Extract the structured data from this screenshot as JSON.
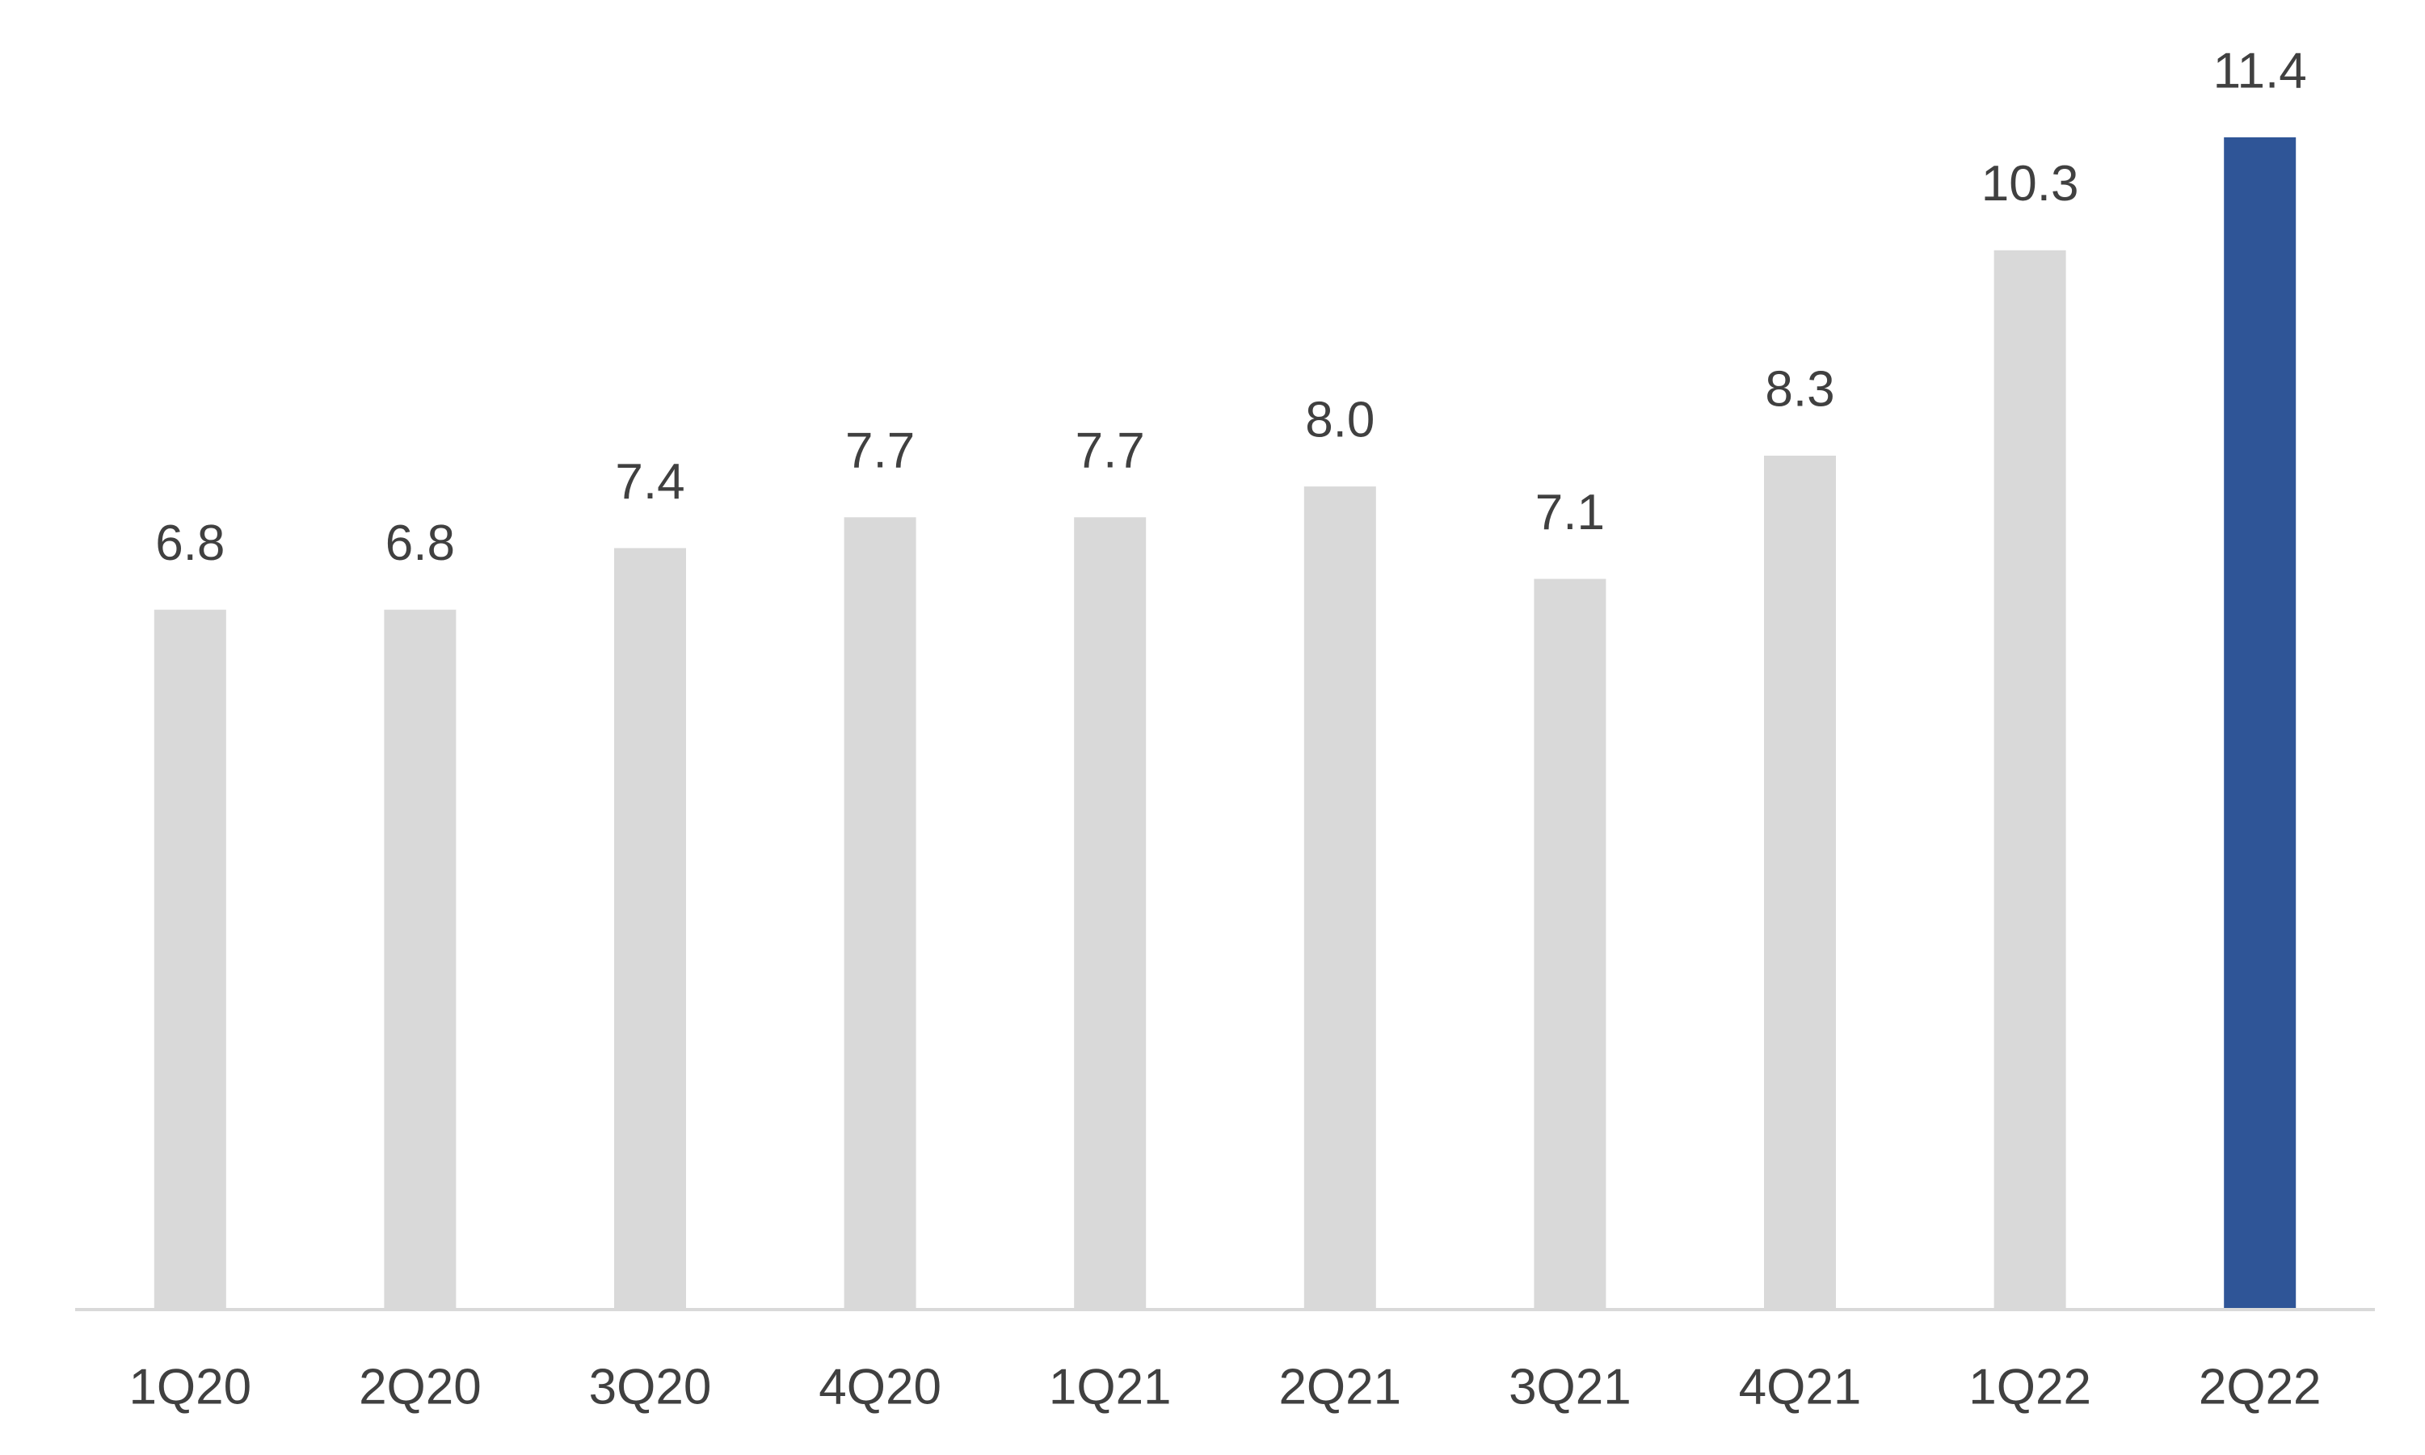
{
  "chart_data": {
    "type": "bar",
    "categories": [
      "1Q20",
      "2Q20",
      "3Q20",
      "4Q20",
      "1Q21",
      "2Q21",
      "3Q21",
      "4Q21",
      "1Q22",
      "2Q22"
    ],
    "values": [
      6.8,
      6.8,
      7.4,
      7.7,
      7.7,
      8,
      7.1,
      8.3,
      10.3,
      11.4
    ],
    "value_labels": [
      "6.8",
      "6.8",
      "7.4",
      "7.7",
      "7.7",
      "8.0",
      "7.1",
      "8.3",
      "10.3",
      "11.4"
    ],
    "colors": [
      "#d9d9d9",
      "#d9d9d9",
      "#d9d9d9",
      "#d9d9d9",
      "#d9d9d9",
      "#d9d9d9",
      "#d9d9d9",
      "#d9d9d9",
      "#d9d9d9",
      "#2f5597"
    ]
  }
}
